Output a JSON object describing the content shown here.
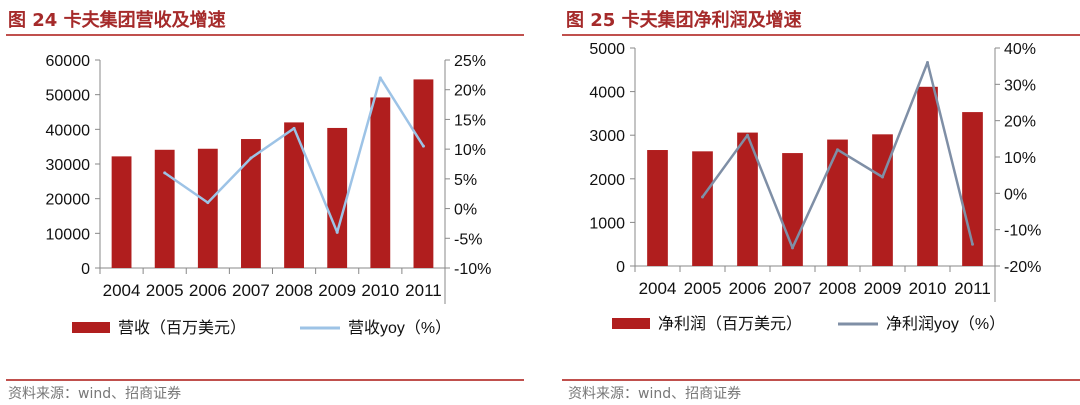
{
  "figures": [
    {
      "title": "图 24 卡夫集团营收及增速",
      "source": "资料来源：wind、招商证券"
    },
    {
      "title": "图 25 卡夫集团净利润及增速",
      "source": "资料来源：wind、招商证券"
    }
  ],
  "chart_data": [
    {
      "type": "bar",
      "categories": [
        "2004",
        "2005",
        "2006",
        "2007",
        "2008",
        "2009",
        "2010",
        "2011"
      ],
      "series": [
        {
          "name": "营收（百万美元）",
          "type": "bar",
          "axis": "left",
          "color": "#b01e1e",
          "values": [
            32200,
            34100,
            34400,
            37200,
            42000,
            40400,
            49200,
            54400
          ]
        },
        {
          "name": "营收yoy（%）",
          "type": "line",
          "axis": "right",
          "color": "#9dc3e6",
          "values": [
            null,
            6.0,
            1.0,
            8.5,
            13.5,
            -4.0,
            22.0,
            10.5
          ]
        }
      ],
      "ylim": [
        0,
        60000
      ],
      "yticks": [
        "0",
        "10000",
        "20000",
        "30000",
        "40000",
        "50000",
        "60000"
      ],
      "y2lim": [
        -10,
        25
      ],
      "y2ticks": [
        "-10%",
        "-5%",
        "0%",
        "5%",
        "10%",
        "15%",
        "20%",
        "25%"
      ],
      "grid": false,
      "legend": "bottom"
    },
    {
      "type": "bar",
      "categories": [
        "2004",
        "2005",
        "2006",
        "2007",
        "2008",
        "2009",
        "2010",
        "2011"
      ],
      "series": [
        {
          "name": "净利润（百万美元）",
          "type": "bar",
          "axis": "left",
          "color": "#b01e1e",
          "values": [
            2660,
            2630,
            3060,
            2590,
            2900,
            3020,
            4110,
            3530
          ]
        },
        {
          "name": "净利润yoy（%）",
          "type": "line",
          "axis": "right",
          "color": "#7f8fa6",
          "values": [
            null,
            -1,
            16,
            -15,
            12,
            4.5,
            36,
            -14
          ]
        }
      ],
      "ylim": [
        0,
        5000
      ],
      "yticks": [
        "0",
        "1000",
        "2000",
        "3000",
        "4000",
        "5000"
      ],
      "y2lim": [
        -20,
        40
      ],
      "y2ticks": [
        "-20%",
        "-10%",
        "0%",
        "10%",
        "20%",
        "30%",
        "40%"
      ],
      "grid": false,
      "legend": "bottom"
    }
  ]
}
